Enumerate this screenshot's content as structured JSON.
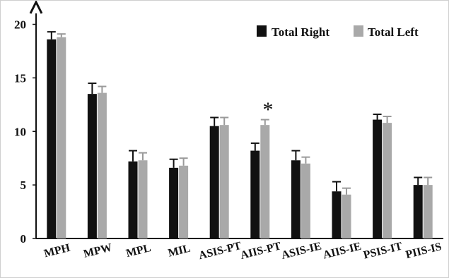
{
  "chart_data": {
    "type": "bar",
    "categories": [
      "MPH",
      "MPW",
      "MPL",
      "MIL",
      "ASIS-PT",
      "AIIS-PT",
      "ASIS-IE",
      "AIIS-IE",
      "PSIS-IT",
      "PIIS-IS"
    ],
    "series": [
      {
        "name": "Total Right",
        "color": "#111111",
        "values": [
          18.6,
          13.5,
          7.2,
          6.6,
          10.5,
          8.2,
          7.3,
          4.4,
          11.1,
          5.0
        ],
        "errors": [
          0.7,
          1.0,
          1.0,
          0.8,
          0.8,
          0.7,
          0.9,
          0.9,
          0.5,
          0.7
        ]
      },
      {
        "name": "Total Left",
        "color": "#a9a9a9",
        "values": [
          18.8,
          13.6,
          7.3,
          6.8,
          10.6,
          10.6,
          7.0,
          4.1,
          10.8,
          5.0
        ],
        "errors": [
          0.3,
          0.6,
          0.7,
          0.7,
          0.7,
          0.5,
          0.6,
          0.6,
          0.6,
          0.7
        ]
      }
    ],
    "yticks": [
      0,
      5,
      10,
      15,
      20
    ],
    "ylim": [
      0,
      21
    ],
    "legend": "top-right",
    "annotations": [
      {
        "text": "*",
        "category": "AIIS-PT",
        "series": "Total Left"
      }
    ]
  }
}
